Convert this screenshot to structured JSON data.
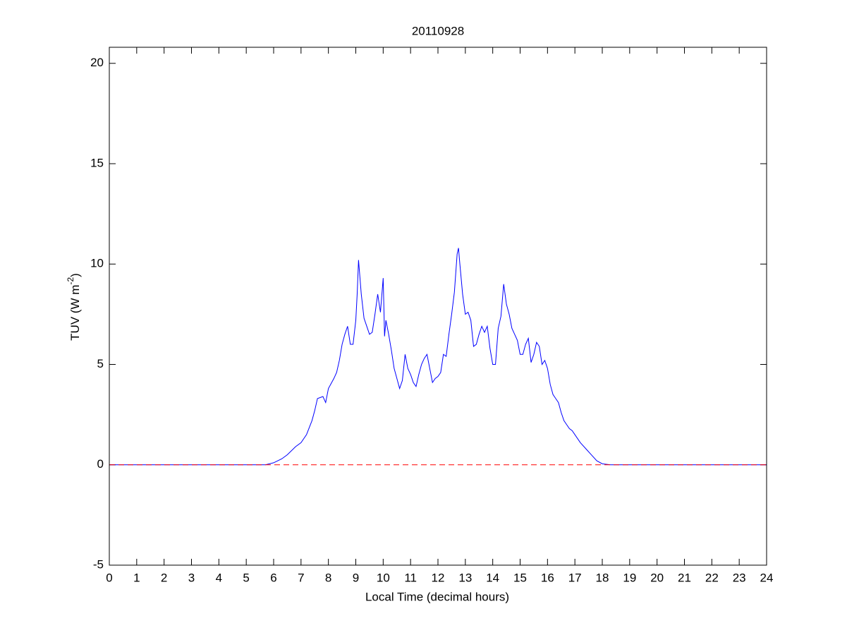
{
  "chart_data": {
    "type": "line",
    "title": "20110928",
    "x_label": "Local Time (decimal hours)",
    "y_label": {
      "text": "TUV (W m",
      "superscript": "-2",
      "suffix": ")"
    },
    "xlim": [
      0,
      24
    ],
    "ylim": [
      -5,
      20.8
    ],
    "xticks": [
      0,
      1,
      2,
      3,
      4,
      5,
      6,
      7,
      8,
      9,
      10,
      11,
      12,
      13,
      14,
      15,
      16,
      17,
      18,
      19,
      20,
      21,
      22,
      23,
      24
    ],
    "yticks": [
      -5,
      0,
      5,
      10,
      15,
      20
    ],
    "grid": false,
    "series": [
      {
        "color": "#0000ff",
        "style": "solid",
        "x": [
          0,
          5.7,
          6.0,
          6.3,
          6.5,
          6.8,
          7.0,
          7.2,
          7.4,
          7.5,
          7.6,
          7.8,
          7.9,
          8.0,
          8.2,
          8.3,
          8.4,
          8.5,
          8.6,
          8.7,
          8.8,
          8.9,
          9.0,
          9.05,
          9.1,
          9.2,
          9.3,
          9.4,
          9.5,
          9.6,
          9.7,
          9.8,
          9.9,
          10.0,
          10.05,
          10.1,
          10.2,
          10.3,
          10.4,
          10.5,
          10.6,
          10.7,
          10.8,
          10.9,
          11.0,
          11.1,
          11.2,
          11.3,
          11.4,
          11.5,
          11.6,
          11.7,
          11.8,
          11.9,
          12.0,
          12.1,
          12.2,
          12.3,
          12.4,
          12.5,
          12.6,
          12.7,
          12.75,
          12.8,
          12.9,
          13.0,
          13.1,
          13.2,
          13.3,
          13.4,
          13.5,
          13.6,
          13.7,
          13.8,
          13.9,
          14.0,
          14.1,
          14.2,
          14.3,
          14.4,
          14.5,
          14.6,
          14.7,
          14.8,
          14.9,
          15.0,
          15.1,
          15.2,
          15.3,
          15.4,
          15.5,
          15.6,
          15.7,
          15.8,
          15.9,
          16.0,
          16.1,
          16.2,
          16.3,
          16.4,
          16.5,
          16.6,
          16.7,
          16.8,
          16.9,
          17.0,
          17.2,
          17.4,
          17.6,
          17.8,
          18.0,
          18.3,
          24
        ],
        "values": [
          0,
          0,
          0.1,
          0.3,
          0.5,
          0.9,
          1.1,
          1.5,
          2.2,
          2.7,
          3.3,
          3.4,
          3.1,
          3.8,
          4.3,
          4.6,
          5.2,
          6.0,
          6.5,
          6.9,
          6.0,
          6.0,
          7.2,
          8.5,
          10.2,
          8.5,
          7.3,
          6.9,
          6.5,
          6.6,
          7.5,
          8.5,
          7.6,
          9.3,
          6.4,
          7.2,
          6.5,
          5.7,
          4.8,
          4.3,
          3.8,
          4.2,
          5.5,
          4.8,
          4.5,
          4.1,
          3.9,
          4.5,
          5.0,
          5.3,
          5.5,
          4.8,
          4.1,
          4.3,
          4.4,
          4.6,
          5.5,
          5.4,
          6.5,
          7.5,
          8.6,
          10.5,
          10.8,
          10.0,
          8.5,
          7.5,
          7.6,
          7.2,
          5.9,
          6.0,
          6.5,
          6.9,
          6.6,
          6.9,
          5.8,
          5.0,
          5.0,
          6.8,
          7.4,
          9.0,
          8.0,
          7.5,
          6.8,
          6.5,
          6.2,
          5.5,
          5.5,
          6.0,
          6.3,
          5.1,
          5.5,
          6.1,
          5.9,
          5.0,
          5.2,
          4.8,
          4.0,
          3.5,
          3.3,
          3.1,
          2.6,
          2.2,
          2.0,
          1.8,
          1.7,
          1.5,
          1.1,
          0.8,
          0.5,
          0.2,
          0.05,
          0,
          0
        ]
      },
      {
        "color": "#ff0000",
        "style": "dashed",
        "x": [
          0,
          24
        ],
        "values": [
          0,
          0
        ]
      }
    ]
  }
}
